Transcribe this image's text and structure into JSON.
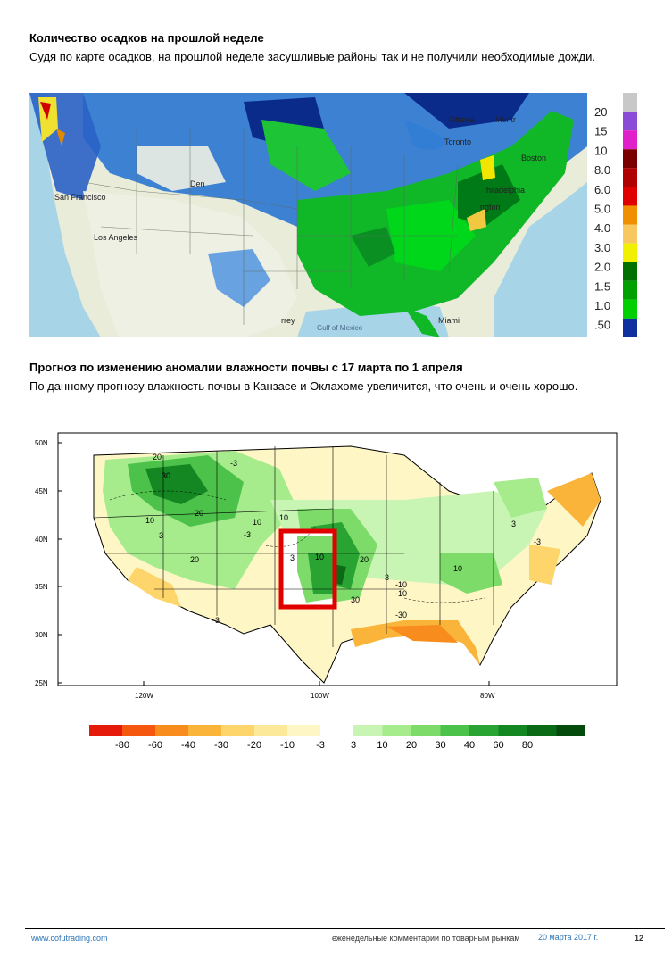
{
  "section1": {
    "heading": "Количество осадков на прошлой неделе",
    "text": "Судя по карте осадков, на прошлой неделе засушливые районы так и не получили необходимые дожди."
  },
  "precip_map": {
    "cities": [
      "Ottawa",
      "Montr",
      "Toronto",
      "Boston",
      "hiladelphia",
      "ngton",
      "San Francisco",
      "Los Angeles",
      "Miami",
      "Gulf of Mexico",
      "Den",
      "rrey"
    ],
    "legend_values": [
      "20",
      "15",
      "10",
      "8.0",
      "6.0",
      "5.0",
      "4.0",
      "3.0",
      "2.0",
      "1.5",
      "1.0",
      ".50"
    ],
    "legend_colors": [
      "#c8c8c8",
      "#8a4cd6",
      "#e020c8",
      "#7a0000",
      "#b00000",
      "#e00000",
      "#f09000",
      "#f8c860",
      "#f0f000",
      "#007000",
      "#00a000",
      "#00d000",
      "#1030a0"
    ]
  },
  "section2": {
    "heading": "Прогноз по изменению аномалии влажности почвы с 17 марта по 1 апреля",
    "text": "По данному прогнозу влажность почвы в Канзасе и Оклахоме увеличится, что очень и очень хорошо."
  },
  "soil_map": {
    "lat_labels": [
      "50N",
      "45N",
      "40N",
      "35N",
      "30N",
      "25N"
    ],
    "lon_labels": [
      "120W",
      "100W",
      "80W"
    ],
    "contour_labels": [
      "20",
      "30",
      "-3",
      "10",
      "3",
      "20",
      "10",
      "-3",
      "20",
      "3",
      "-3",
      "10",
      "20",
      "10",
      "3",
      "30",
      "-10",
      "10",
      "-30",
      "-3",
      "-10",
      "3"
    ],
    "legend_neg": [
      "-80",
      "-60",
      "-40",
      "-30",
      "-20",
      "-10",
      "-3"
    ],
    "legend_pos": [
      "3",
      "10",
      "20",
      "30",
      "40",
      "60",
      "80"
    ],
    "legend_neg_colors": [
      "#e61a0a",
      "#f5570f",
      "#f88c1c",
      "#fbb43a",
      "#fdd56b",
      "#fde99a",
      "#fff6c6"
    ],
    "legend_pos_colors": [
      "#c8f5b4",
      "#a6ec8d",
      "#7ddb6a",
      "#4dc24a",
      "#29a433",
      "#148722",
      "#0b6a16",
      "#034a0c"
    ],
    "highlight_color": "#e00000"
  },
  "footer": {
    "url": "www.cofutrading.com",
    "title": "еженедельные комментарии по товарным рынкам",
    "date": "20 марта 2017 г.",
    "page": "12"
  }
}
